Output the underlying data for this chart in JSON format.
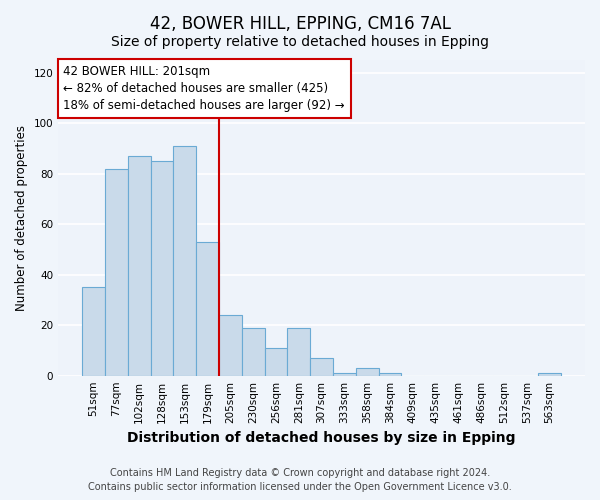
{
  "title": "42, BOWER HILL, EPPING, CM16 7AL",
  "subtitle": "Size of property relative to detached houses in Epping",
  "xlabel": "Distribution of detached houses by size in Epping",
  "ylabel": "Number of detached properties",
  "categories": [
    "51sqm",
    "77sqm",
    "102sqm",
    "128sqm",
    "153sqm",
    "179sqm",
    "205sqm",
    "230sqm",
    "256sqm",
    "281sqm",
    "307sqm",
    "333sqm",
    "358sqm",
    "384sqm",
    "409sqm",
    "435sqm",
    "461sqm",
    "486sqm",
    "512sqm",
    "537sqm",
    "563sqm"
  ],
  "values": [
    35,
    82,
    87,
    85,
    91,
    53,
    24,
    19,
    11,
    19,
    7,
    1,
    3,
    1,
    0,
    0,
    0,
    0,
    0,
    0,
    1
  ],
  "bar_color": "#c9daea",
  "bar_edge_color": "#6aaad4",
  "bar_edge_width": 0.8,
  "vline_x_index": 6,
  "vline_color": "#cc0000",
  "annotation_text": "42 BOWER HILL: 201sqm\n← 82% of detached houses are smaller (425)\n18% of semi-detached houses are larger (92) →",
  "annotation_box_facecolor": "#ffffff",
  "annotation_box_edgecolor": "#cc0000",
  "ylim": [
    0,
    125
  ],
  "yticks": [
    0,
    20,
    40,
    60,
    80,
    100,
    120
  ],
  "footer_line1": "Contains HM Land Registry data © Crown copyright and database right 2024.",
  "footer_line2": "Contains public sector information licensed under the Open Government Licence v3.0.",
  "fig_facecolor": "#f0f5fb",
  "plot_facecolor": "#eef3fa",
  "grid_color": "#ffffff",
  "title_fontsize": 12,
  "subtitle_fontsize": 10,
  "xlabel_fontsize": 10,
  "ylabel_fontsize": 8.5,
  "tick_fontsize": 7.5,
  "annotation_fontsize": 8.5,
  "footer_fontsize": 7
}
